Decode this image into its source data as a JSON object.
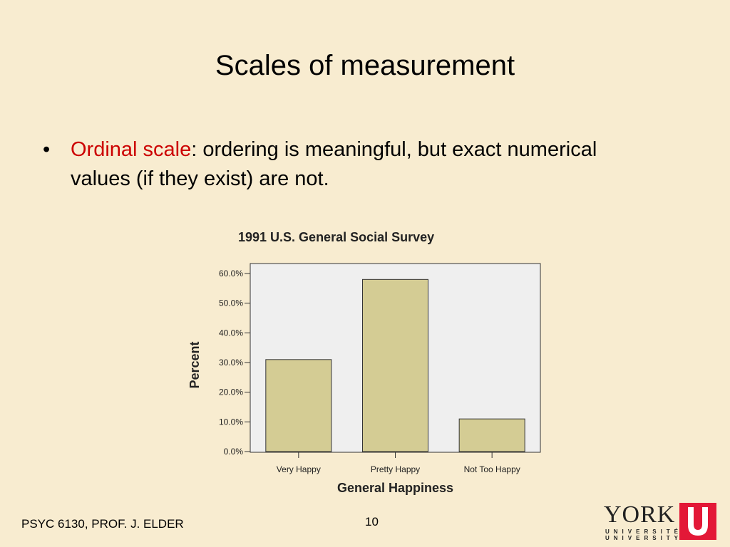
{
  "slide": {
    "title": "Scales of measurement",
    "bullet_marker": "•",
    "bullet_term": "Ordinal scale",
    "bullet_rest": ":  ordering is meaningful, but exact numerical values (if they exist) are not."
  },
  "footer": {
    "course": "PSYC 6130, PROF. J. ELDER",
    "page_number": "10"
  },
  "logo": {
    "name": "YORK",
    "line1": "UNIVERSITÉ",
    "line2": "UNIVERSITY",
    "icon": "york-u-logo-icon",
    "color": "#e31837"
  },
  "colors": {
    "background": "#f8ecd0",
    "accent_text": "#cc0000",
    "bar_fill": "#d4cc94",
    "plot_bg": "#efefef"
  },
  "chart_data": {
    "type": "bar",
    "title": "1991 U.S. General Social Survey",
    "xlabel": "General Happiness",
    "ylabel": "Percent",
    "categories": [
      "Very Happy",
      "Pretty Happy",
      "Not Too Happy"
    ],
    "values": [
      31,
      58,
      11
    ],
    "ylim": [
      0,
      60
    ],
    "yticks": [
      "0.0%",
      "10.0%",
      "20.0%",
      "30.0%",
      "40.0%",
      "50.0%",
      "60.0%"
    ],
    "grid": false,
    "legend": "none"
  }
}
